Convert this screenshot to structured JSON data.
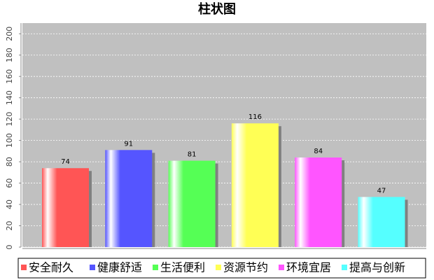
{
  "chart_data": {
    "type": "bar",
    "title": "柱状图",
    "categories": [
      "安全耐久",
      "健康舒适",
      "生活便利",
      "资源节约",
      "环境宜居",
      "提高与创新"
    ],
    "values": [
      74,
      91,
      81,
      116,
      84,
      47
    ],
    "colors": [
      "#ff5555",
      "#5555ff",
      "#55ff55",
      "#ffff55",
      "#ff55ff",
      "#55ffff"
    ],
    "ylim": [
      0,
      210
    ],
    "yticks": [
      0,
      20,
      40,
      60,
      80,
      100,
      120,
      140,
      160,
      180,
      200
    ],
    "grid": true
  }
}
